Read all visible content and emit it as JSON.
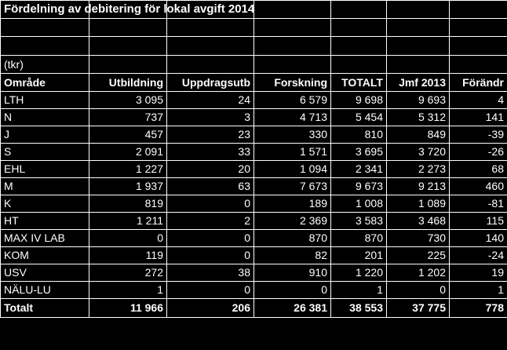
{
  "title": "Fördelning av debitering för lokal avgift 2014",
  "unit": "(tkr)",
  "headers": [
    "Område",
    "Utbildning",
    "Uppdragsutb",
    "Forskning",
    "TOTALT",
    "Jmf 2013",
    "Förändr"
  ],
  "rows": [
    [
      "LTH",
      "3 095",
      "24",
      "6 579",
      "9 698",
      "9 693",
      "4"
    ],
    [
      "N",
      "737",
      "3",
      "4 713",
      "5 454",
      "5 312",
      "141"
    ],
    [
      "J",
      "457",
      "23",
      "330",
      "810",
      "849",
      "-39"
    ],
    [
      "S",
      "2 091",
      "33",
      "1 571",
      "3 695",
      "3 720",
      "-26"
    ],
    [
      "EHL",
      "1 227",
      "20",
      "1 094",
      "2 341",
      "2 273",
      "68"
    ],
    [
      "M",
      "1 937",
      "63",
      "7 673",
      "9 673",
      "9 213",
      "460"
    ],
    [
      "K",
      "819",
      "0",
      "189",
      "1 008",
      "1 089",
      "-81"
    ],
    [
      "HT",
      "1 211",
      "2",
      "2 369",
      "3 583",
      "3 468",
      "115"
    ],
    [
      "MAX IV LAB",
      "0",
      "0",
      "870",
      "870",
      "730",
      "140"
    ],
    [
      "KOM",
      "119",
      "0",
      "82",
      "201",
      "225",
      "-24"
    ],
    [
      "USV",
      "272",
      "38",
      "910",
      "1 220",
      "1 202",
      "19"
    ],
    [
      "NÄLU-LU",
      "1",
      "0",
      "0",
      "1",
      "0",
      "1"
    ]
  ],
  "total": [
    "Totalt",
    "11 966",
    "206",
    "26 381",
    "38 553",
    "37 775",
    "778"
  ]
}
